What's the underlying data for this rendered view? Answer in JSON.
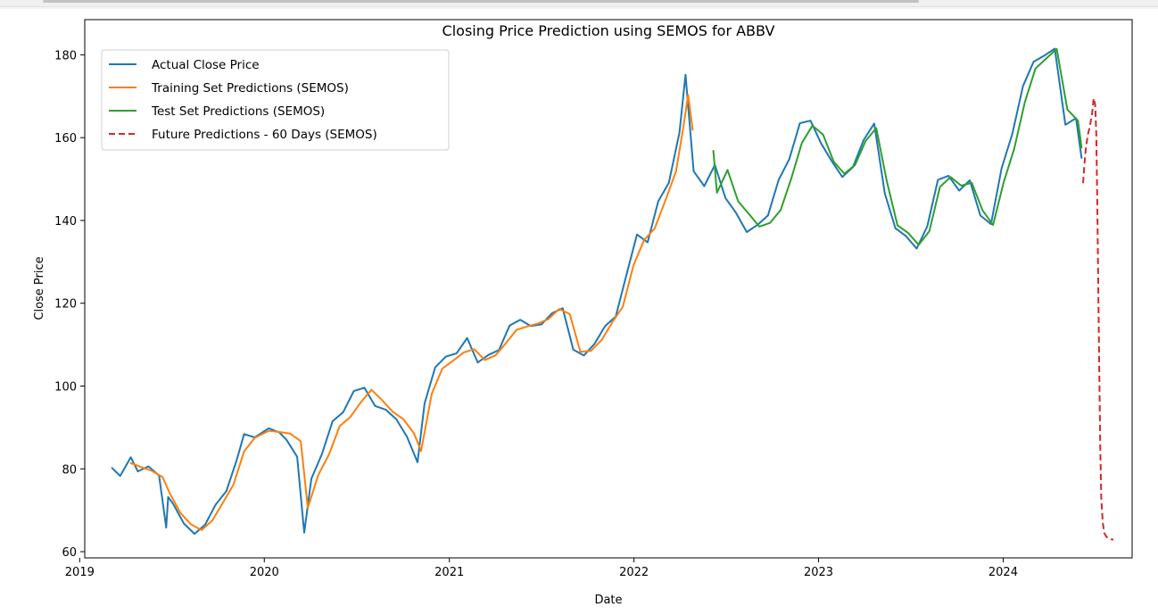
{
  "chart_data": {
    "type": "line",
    "title": "Closing Price Prediction using SEMOS for ABBV",
    "xlabel": "Date",
    "ylabel": "Close Price",
    "xlim": [
      "2019-01-11",
      "2024-09-12"
    ],
    "ylim": [
      58.5,
      188.5
    ],
    "x_ticks": [
      "2019-01-01",
      "2020-01-01",
      "2021-01-01",
      "2022-01-01",
      "2023-01-01",
      "2024-01-01"
    ],
    "x_tick_labels": [
      "2019",
      "2020",
      "2021",
      "2022",
      "2023",
      "2024"
    ],
    "y_ticks": [
      60,
      80,
      100,
      120,
      140,
      160,
      180
    ],
    "y_tick_labels": [
      "60",
      "80",
      "100",
      "120",
      "140",
      "160",
      "180"
    ],
    "grid": false,
    "legend_position": "top-left",
    "series": [
      {
        "name": "Actual Close Price",
        "color": "#1f77b4",
        "dash": "solid",
        "x": [
          "2019-03-06",
          "2019-03-22",
          "2019-04-12",
          "2019-04-26",
          "2019-05-17",
          "2019-06-07",
          "2019-06-21",
          "2019-06-25",
          "2019-07-05",
          "2019-07-26",
          "2019-08-16",
          "2019-09-06",
          "2019-09-27",
          "2019-10-18",
          "2019-11-08",
          "2019-11-22",
          "2019-12-13",
          "2020-01-10",
          "2020-01-31",
          "2020-02-14",
          "2020-03-06",
          "2020-03-20",
          "2020-04-03",
          "2020-04-24",
          "2020-05-15",
          "2020-06-05",
          "2020-06-26",
          "2020-07-17",
          "2020-08-07",
          "2020-08-28",
          "2020-09-18",
          "2020-10-09",
          "2020-10-30",
          "2020-11-13",
          "2020-12-04",
          "2020-12-25",
          "2021-01-15",
          "2021-02-05",
          "2021-02-26",
          "2021-03-19",
          "2021-04-09",
          "2021-04-30",
          "2021-05-21",
          "2021-06-11",
          "2021-07-02",
          "2021-07-23",
          "2021-08-13",
          "2021-09-03",
          "2021-09-24",
          "2021-10-15",
          "2021-11-05",
          "2021-11-26",
          "2021-12-17",
          "2022-01-07",
          "2022-01-28",
          "2022-02-18",
          "2022-03-11",
          "2022-04-01",
          "2022-04-13",
          "2022-04-29",
          "2022-05-20",
          "2022-06-10",
          "2022-07-01",
          "2022-07-22",
          "2022-08-12",
          "2022-09-02",
          "2022-09-23",
          "2022-10-14",
          "2022-11-04",
          "2022-11-25",
          "2022-12-16",
          "2023-01-06",
          "2023-01-27",
          "2023-02-17",
          "2023-03-10",
          "2023-03-31",
          "2023-04-21",
          "2023-05-12",
          "2023-06-02",
          "2023-06-23",
          "2023-07-14",
          "2023-08-04",
          "2023-08-25",
          "2023-09-15",
          "2023-10-06",
          "2023-10-27",
          "2023-11-17",
          "2023-12-08",
          "2023-12-29",
          "2024-01-19",
          "2024-02-09",
          "2024-03-01",
          "2024-03-22",
          "2024-04-12",
          "2024-05-03",
          "2024-05-24",
          "2024-06-04"
        ],
        "values": [
          80.2,
          78.3,
          82.8,
          79.4,
          80.6,
          78.4,
          65.8,
          73.2,
          71.5,
          66.8,
          64.3,
          66.5,
          71.4,
          74.6,
          82.3,
          88.4,
          87.6,
          89.8,
          88.8,
          87.0,
          82.9,
          64.6,
          77.6,
          83.6,
          91.5,
          93.7,
          98.8,
          99.6,
          95.2,
          94.3,
          92.0,
          87.8,
          81.6,
          95.8,
          104.5,
          107.1,
          107.9,
          111.6,
          105.7,
          107.5,
          108.7,
          114.6,
          116.0,
          114.5,
          114.9,
          117.6,
          118.8,
          108.8,
          107.4,
          110.2,
          114.5,
          116.8,
          126.8,
          136.6,
          134.7,
          144.6,
          149.1,
          161.2,
          175.2,
          151.9,
          148.3,
          153.4,
          145.4,
          141.8,
          137.2,
          138.9,
          141.2,
          149.8,
          154.8,
          163.5,
          164.1,
          158.6,
          154.3,
          150.5,
          152.9,
          159.4,
          163.4,
          146.5,
          138.1,
          136.2,
          133.2,
          138.6,
          149.8,
          150.8,
          147.2,
          149.7,
          141.2,
          139.1,
          152.6,
          160.9,
          172.4,
          178.3,
          179.8,
          181.5,
          163.1,
          164.7,
          155.1
        ]
      },
      {
        "name": "Training Set Predictions (SEMOS)",
        "color": "#ff7f0e",
        "dash": "solid",
        "x": [
          "2019-04-12",
          "2019-05-03",
          "2019-05-24",
          "2019-06-14",
          "2019-06-28",
          "2019-07-19",
          "2019-08-09",
          "2019-08-30",
          "2019-09-20",
          "2019-10-11",
          "2019-11-01",
          "2019-11-22",
          "2019-12-13",
          "2020-01-10",
          "2020-01-31",
          "2020-02-21",
          "2020-03-13",
          "2020-03-27",
          "2020-04-17",
          "2020-05-08",
          "2020-05-29",
          "2020-06-19",
          "2020-07-10",
          "2020-07-31",
          "2020-08-21",
          "2020-09-11",
          "2020-10-02",
          "2020-10-23",
          "2020-11-06",
          "2020-11-27",
          "2020-12-18",
          "2021-01-08",
          "2021-01-29",
          "2021-02-19",
          "2021-03-12",
          "2021-04-02",
          "2021-04-23",
          "2021-05-14",
          "2021-06-04",
          "2021-06-25",
          "2021-07-16",
          "2021-08-06",
          "2021-08-27",
          "2021-09-17",
          "2021-10-08",
          "2021-10-29",
          "2021-11-19",
          "2021-12-10",
          "2021-12-31",
          "2022-01-21",
          "2022-02-11",
          "2022-03-04",
          "2022-03-25",
          "2022-04-08",
          "2022-04-18",
          "2022-04-27"
        ],
        "values": [
          81.4,
          80.4,
          79.5,
          78.0,
          74.1,
          69.4,
          66.6,
          65.2,
          67.5,
          71.8,
          76.2,
          84.2,
          87.5,
          89.2,
          88.9,
          88.5,
          86.7,
          70.6,
          78.6,
          83.5,
          90.3,
          92.5,
          96.1,
          99.1,
          96.6,
          93.8,
          92.0,
          88.6,
          84.3,
          98.1,
          104.2,
          106.1,
          108.1,
          108.9,
          106.3,
          107.4,
          110.4,
          113.6,
          114.4,
          115.1,
          116.2,
          118.6,
          117.4,
          108.3,
          108.5,
          111.1,
          115.4,
          119.2,
          129.2,
          135.3,
          138.1,
          144.8,
          151.8,
          162.0,
          170.3,
          161.9
        ]
      },
      {
        "name": "Test Set Predictions (SEMOS)",
        "color": "#2ca02c",
        "dash": "solid",
        "x": [
          "2022-06-07",
          "2022-06-14",
          "2022-07-05",
          "2022-07-26",
          "2022-08-16",
          "2022-09-06",
          "2022-09-27",
          "2022-10-18",
          "2022-11-08",
          "2022-11-29",
          "2022-12-20",
          "2023-01-10",
          "2023-01-31",
          "2023-02-21",
          "2023-03-14",
          "2023-04-04",
          "2023-04-25",
          "2023-05-16",
          "2023-06-06",
          "2023-06-27",
          "2023-07-18",
          "2023-08-08",
          "2023-08-29",
          "2023-09-19",
          "2023-10-10",
          "2023-10-31",
          "2023-11-21",
          "2023-12-12",
          "2024-01-02",
          "2024-01-23",
          "2024-02-13",
          "2024-03-05",
          "2024-03-26",
          "2024-04-16",
          "2024-05-07",
          "2024-05-28",
          "2024-06-04"
        ],
        "values": [
          156.8,
          146.7,
          152.2,
          144.6,
          141.6,
          138.5,
          139.4,
          142.5,
          150.1,
          158.7,
          162.9,
          160.7,
          154.2,
          151.3,
          153.4,
          159.2,
          162.3,
          149.4,
          138.8,
          137.0,
          134.1,
          137.4,
          148.1,
          150.5,
          148.4,
          149.1,
          142.5,
          138.9,
          149.2,
          157.4,
          168.6,
          176.7,
          179.1,
          181.4,
          166.8,
          164.1,
          157.6
        ]
      },
      {
        "name": "Future Predictions - 60 Days (SEMOS)",
        "color": "#d62728",
        "dash": "dashed",
        "x": [
          "2024-06-07",
          "2024-06-10",
          "2024-06-13",
          "2024-06-17",
          "2024-06-21",
          "2024-06-25",
          "2024-06-28",
          "2024-07-01",
          "2024-07-03",
          "2024-07-05",
          "2024-07-07",
          "2024-07-09",
          "2024-07-11",
          "2024-07-13",
          "2024-07-16",
          "2024-07-19",
          "2024-07-23",
          "2024-07-27",
          "2024-08-01",
          "2024-08-06"
        ],
        "values": [
          149.0,
          154.0,
          158.0,
          161.0,
          163.0,
          166.0,
          169.5,
          168.0,
          161.0,
          145.0,
          125.0,
          103.0,
          85.0,
          73.0,
          67.0,
          64.5,
          63.6,
          63.2,
          63.0,
          62.9
        ]
      }
    ]
  }
}
